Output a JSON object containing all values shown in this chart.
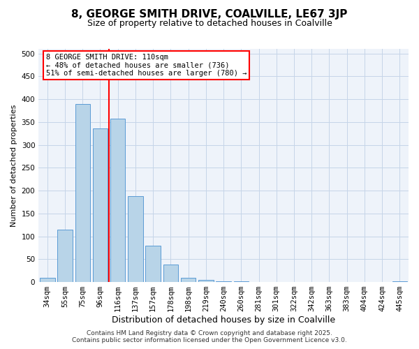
{
  "title": "8, GEORGE SMITH DRIVE, COALVILLE, LE67 3JP",
  "subtitle": "Size of property relative to detached houses in Coalville",
  "xlabel": "Distribution of detached houses by size in Coalville",
  "ylabel": "Number of detached properties",
  "bar_labels": [
    "34sqm",
    "55sqm",
    "75sqm",
    "96sqm",
    "116sqm",
    "137sqm",
    "157sqm",
    "178sqm",
    "198sqm",
    "219sqm",
    "240sqm",
    "260sqm",
    "281sqm",
    "301sqm",
    "322sqm",
    "342sqm",
    "363sqm",
    "383sqm",
    "404sqm",
    "424sqm",
    "445sqm"
  ],
  "bar_values": [
    10,
    115,
    390,
    336,
    357,
    188,
    79,
    38,
    10,
    5,
    2,
    1,
    0,
    0,
    0,
    0,
    0,
    0,
    0,
    0,
    1
  ],
  "bar_color": "#b8d4e8",
  "bar_edge_color": "#5b9bd5",
  "vline_color": "red",
  "ylim": [
    0,
    510
  ],
  "yticks": [
    0,
    50,
    100,
    150,
    200,
    250,
    300,
    350,
    400,
    450,
    500
  ],
  "annotation_title": "8 GEORGE SMITH DRIVE: 110sqm",
  "annotation_line1": "← 48% of detached houses are smaller (736)",
  "annotation_line2": "51% of semi-detached houses are larger (780) →",
  "footer_line1": "Contains HM Land Registry data © Crown copyright and database right 2025.",
  "footer_line2": "Contains public sector information licensed under the Open Government Licence v3.0.",
  "bg_color": "#eef3fa",
  "grid_color": "#c5d5e8",
  "title_fontsize": 11,
  "subtitle_fontsize": 9,
  "ylabel_fontsize": 8,
  "xlabel_fontsize": 9,
  "tick_fontsize": 7.5,
  "ann_fontsize": 7.5,
  "footer_fontsize": 6.5
}
